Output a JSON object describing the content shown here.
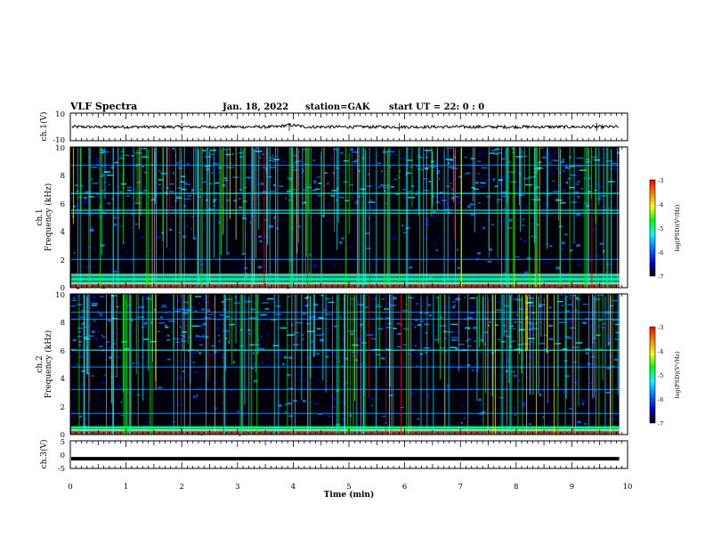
{
  "header": {
    "title": "VLF Spectra",
    "date": "Jan. 18, 2022",
    "station": "station=GAK",
    "start_ut": "start  UT =  22: 0  : 0"
  },
  "chart_data": [
    {
      "type": "line",
      "ylabel": "ch.1(V)",
      "ylim": [
        -10,
        10
      ],
      "y_tick_labels": [
        "10",
        "-10"
      ],
      "level_approx": 0
    },
    {
      "type": "heatmap",
      "ylabel_line1": "ch.1",
      "ylabel_line2": "Frequency (kHz)",
      "ylim": [
        0,
        10
      ],
      "y_tick_labels": [
        "0",
        "2",
        "4",
        "6",
        "8",
        "10"
      ],
      "colorbar": {
        "label": "log(PSD)(V²/Hz)",
        "range": [
          -7,
          -3
        ],
        "tick_labels": [
          "-3",
          "-4",
          "-5",
          "-6",
          "-7"
        ]
      },
      "notable_bands_khz": [
        0.3,
        0.6,
        0.9,
        2.0,
        5.3,
        5.5,
        6.7,
        8.7
      ]
    },
    {
      "type": "heatmap",
      "ylabel_line1": "ch.2",
      "ylabel_line2": "Frequency (kHz)",
      "ylim": [
        0,
        10
      ],
      "y_tick_labels": [
        "0",
        "2",
        "4",
        "6",
        "8",
        "10"
      ],
      "colorbar": {
        "label": "log(PSD)(V²/Hz)",
        "range": [
          -7,
          -3
        ],
        "tick_labels": [
          "-3",
          "-4",
          "-5",
          "-6",
          "-7"
        ]
      },
      "notable_bands_khz": [
        0.3,
        0.5,
        1.5,
        3.2,
        4.8,
        6.0,
        8.2,
        8.7
      ]
    },
    {
      "type": "line",
      "ylabel": "ch.3(V)",
      "ylim": [
        -5,
        5
      ],
      "y_tick_labels": [
        "5",
        "0",
        "-5"
      ],
      "level": -1.5
    }
  ],
  "xaxis": {
    "label": "Time (min)",
    "range": [
      0,
      10
    ],
    "tick_labels": [
      "0",
      "1",
      "2",
      "3",
      "4",
      "5",
      "6",
      "7",
      "8",
      "9",
      "10"
    ],
    "data_end_min": 9.85
  },
  "colors": {
    "background_spectrogram": "#000010",
    "colormap": [
      "#000000",
      "#0000cc",
      "#0080ff",
      "#00ffff",
      "#00ff00",
      "#ffff00",
      "#ff8000",
      "#ff0000"
    ]
  }
}
